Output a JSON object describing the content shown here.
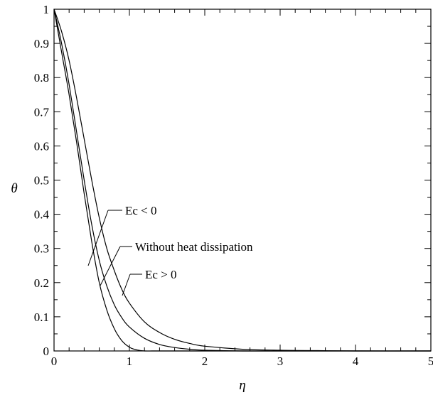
{
  "chart_data": {
    "type": "line",
    "xlabel": "η",
    "ylabel": "θ",
    "xlim": [
      0,
      5
    ],
    "ylim": [
      0,
      1
    ],
    "xticks": [
      "0",
      "1",
      "2",
      "3",
      "4",
      "5"
    ],
    "yticks": [
      "0",
      "0.1",
      "0.2",
      "0.3",
      "0.4",
      "0.5",
      "0.6",
      "0.7",
      "0.8",
      "0.9",
      "1"
    ],
    "grid": false,
    "legend": "none",
    "series": [
      {
        "name": "Ec < 0",
        "x": [
          0,
          0.1,
          0.2,
          0.3,
          0.4,
          0.5,
          0.6,
          0.7,
          0.8,
          0.9,
          1.0,
          1.1,
          1.2,
          1.3,
          1.4,
          1.5,
          2.0,
          5.0
        ],
        "y": [
          1.0,
          0.875,
          0.75,
          0.61,
          0.46,
          0.32,
          0.2,
          0.12,
          0.065,
          0.03,
          0.011,
          0.003,
          0.0,
          0.0,
          0.0,
          0.0,
          0.0,
          0.0
        ]
      },
      {
        "name": "Without heat dissipation",
        "x": [
          0,
          0.1,
          0.2,
          0.3,
          0.4,
          0.5,
          0.6,
          0.7,
          0.8,
          0.9,
          1.0,
          1.2,
          1.4,
          1.6,
          1.8,
          2.0,
          2.5,
          3.0,
          5.0
        ],
        "y": [
          1.0,
          0.9,
          0.78,
          0.64,
          0.5,
          0.37,
          0.265,
          0.19,
          0.135,
          0.097,
          0.07,
          0.037,
          0.019,
          0.01,
          0.005,
          0.002,
          0.0,
          0.0,
          0.0
        ]
      },
      {
        "name": "Ec > 0",
        "x": [
          0,
          0.1,
          0.2,
          0.3,
          0.4,
          0.5,
          0.6,
          0.7,
          0.8,
          0.9,
          1.0,
          1.2,
          1.4,
          1.6,
          1.8,
          2.0,
          2.5,
          3.0,
          3.5,
          4.0,
          5.0
        ],
        "y": [
          1.0,
          0.935,
          0.85,
          0.74,
          0.62,
          0.5,
          0.39,
          0.3,
          0.235,
          0.18,
          0.14,
          0.085,
          0.054,
          0.034,
          0.022,
          0.014,
          0.005,
          0.002,
          0.001,
          0.0,
          0.0
        ]
      }
    ],
    "annotations": [
      {
        "text": "Ec < 0"
      },
      {
        "text": "Without heat dissipation"
      },
      {
        "text": "Ec > 0"
      }
    ]
  }
}
